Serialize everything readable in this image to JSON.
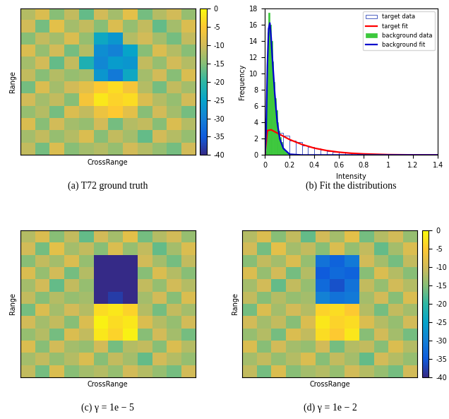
{
  "chart_data": [
    {
      "type": "heatmap",
      "caption": "(a) T72 ground truth",
      "x_label": "CrossRange",
      "y_label": "Range",
      "tick_labels": false,
      "color_range": [
        -40,
        0
      ],
      "color_ticks": [
        0,
        -5,
        -10,
        -15,
        -20,
        -25,
        -30,
        -35,
        -40
      ],
      "cells": [
        [
          -12,
          -9,
          -15,
          -11,
          -17,
          -10,
          -13,
          -8,
          -16,
          -12,
          -10,
          -14
        ],
        [
          -10,
          -16,
          -8,
          -13,
          -11,
          -15,
          -9,
          -14,
          -11,
          -17,
          -13,
          -9
        ],
        [
          -15,
          -11,
          -13,
          -9,
          -14,
          -24,
          -27,
          -12,
          -10,
          -13,
          -16,
          -11
        ],
        [
          -9,
          -14,
          -10,
          -16,
          -12,
          -28,
          -30,
          -25,
          -15,
          -9,
          -12,
          -15
        ],
        [
          -13,
          -10,
          -17,
          -11,
          -22,
          -29,
          -26,
          -27,
          -11,
          -14,
          -10,
          -12
        ],
        [
          -11,
          -15,
          -12,
          -14,
          -13,
          -27,
          -31,
          -24,
          -13,
          -10,
          -15,
          -9
        ],
        [
          -16,
          -9,
          -13,
          -10,
          -8,
          -5,
          -3,
          -6,
          -12,
          -16,
          -11,
          -13
        ],
        [
          -10,
          -13,
          -11,
          -15,
          -6,
          -2,
          -4,
          -3,
          -9,
          -12,
          -14,
          -10
        ],
        [
          -14,
          -12,
          -16,
          -9,
          -11,
          -7,
          -5,
          -8,
          -15,
          -10,
          -13,
          -16
        ],
        [
          -9,
          -15,
          -10,
          -13,
          -14,
          -10,
          -16,
          -12,
          -11,
          -15,
          -9,
          -12
        ],
        [
          -13,
          -11,
          -14,
          -12,
          -9,
          -15,
          -11,
          -13,
          -17,
          -10,
          -12,
          -14
        ],
        [
          -11,
          -16,
          -9,
          -15,
          -13,
          -12,
          -14,
          -10,
          -12,
          -14,
          -16,
          -10
        ]
      ]
    },
    {
      "type": "histogram",
      "caption": "(b) Fit the distributions",
      "x_label": "Intensity",
      "y_label": "Frequency",
      "xlim": [
        0,
        1.4
      ],
      "ylim": [
        0,
        18
      ],
      "xticks": [
        0,
        0.2,
        0.4,
        0.6,
        0.8,
        1,
        1.2,
        1.4
      ],
      "yticks": [
        0,
        2,
        4,
        6,
        8,
        10,
        12,
        14,
        16,
        18
      ],
      "legend": "upper right",
      "series": [
        {
          "name": "target data",
          "type": "histogram",
          "color": "#4a5fc1",
          "bins": [
            0,
            0.05,
            0.1,
            0.15,
            0.2,
            0.25,
            0.3,
            0.35,
            0.4,
            0.45,
            0.5,
            0.55,
            0.6,
            0.65,
            0.7,
            0.75,
            0.8,
            0.85,
            0.9,
            0.95,
            1.0,
            1.05,
            1.1,
            1.15,
            1.2,
            1.25,
            1.3,
            1.35,
            1.4
          ],
          "counts": [
            4.5,
            3.0,
            2.7,
            2.4,
            1.8,
            1.6,
            1.2,
            1.0,
            0.8,
            0.6,
            0.5,
            0.4,
            0.35,
            0.3,
            0.2,
            0.15,
            0.1,
            0.1,
            0.05,
            0.05,
            0.05,
            0,
            0,
            0.03,
            0,
            0,
            0,
            0.02
          ]
        },
        {
          "name": "target fit",
          "type": "line",
          "color": "#ff0000",
          "x": [
            0,
            0.02,
            0.05,
            0.1,
            0.15,
            0.2,
            0.3,
            0.4,
            0.5,
            0.6,
            0.7,
            0.8,
            1.0,
            1.2,
            1.4
          ],
          "values": [
            0,
            3.0,
            3.1,
            2.7,
            2.3,
            1.9,
            1.3,
            0.85,
            0.55,
            0.35,
            0.22,
            0.14,
            0.05,
            0.02,
            0.01
          ]
        },
        {
          "name": "background data",
          "type": "histogram",
          "color": "#3cc83c",
          "bins": [
            0,
            0.01,
            0.02,
            0.03,
            0.04,
            0.05,
            0.06,
            0.07,
            0.08,
            0.09,
            0.1,
            0.11,
            0.12,
            0.13,
            0.14,
            0.15,
            0.16,
            0.17,
            0.18,
            0.19,
            0.2
          ],
          "counts": [
            0.5,
            8,
            15,
            17.5,
            16,
            14,
            11.5,
            9,
            7,
            5.5,
            4,
            3,
            2.2,
            1.6,
            1.1,
            0.8,
            0.5,
            0.35,
            0.2,
            0.1
          ]
        },
        {
          "name": "background fit",
          "type": "line",
          "color": "#0000cc",
          "x": [
            0,
            0.01,
            0.02,
            0.03,
            0.04,
            0.05,
            0.06,
            0.08,
            0.1,
            0.12,
            0.15,
            0.2,
            0.3,
            1.4
          ],
          "values": [
            0,
            3,
            11,
            15.5,
            16.2,
            14.5,
            12,
            7.5,
            4,
            2,
            0.8,
            0.1,
            0,
            0
          ]
        }
      ]
    },
    {
      "type": "heatmap",
      "caption": "(c) γ = 1e − 5",
      "x_label": "CrossRange",
      "y_label": "Range",
      "tick_labels": false,
      "color_range": [
        -40,
        0
      ],
      "cells": [
        [
          -12,
          -9,
          -15,
          -11,
          -17,
          -10,
          -13,
          -8,
          -16,
          -12,
          -10,
          -14
        ],
        [
          -10,
          -16,
          -8,
          -13,
          -11,
          -15,
          -9,
          -14,
          -11,
          -17,
          -13,
          -9
        ],
        [
          -15,
          -11,
          -13,
          -9,
          -14,
          -40,
          -40,
          -40,
          -10,
          -13,
          -16,
          -11
        ],
        [
          -9,
          -14,
          -10,
          -16,
          -12,
          -40,
          -40,
          -40,
          -15,
          -9,
          -12,
          -15
        ],
        [
          -13,
          -10,
          -17,
          -11,
          -14,
          -40,
          -40,
          -40,
          -11,
          -14,
          -10,
          -12
        ],
        [
          -11,
          -15,
          -12,
          -14,
          -13,
          -40,
          -38,
          -40,
          -13,
          -10,
          -15,
          -9
        ],
        [
          -16,
          -9,
          -13,
          -10,
          -12,
          -3,
          -2,
          -4,
          -12,
          -16,
          -11,
          -13
        ],
        [
          -10,
          -13,
          -11,
          -15,
          -9,
          -1,
          -3,
          -2,
          -9,
          -12,
          -14,
          -10
        ],
        [
          -14,
          -12,
          -16,
          -9,
          -11,
          -2,
          -4,
          -1,
          -15,
          -10,
          -13,
          -16
        ],
        [
          -9,
          -15,
          -10,
          -13,
          -14,
          -10,
          -16,
          -12,
          -11,
          -15,
          -9,
          -12
        ],
        [
          -13,
          -11,
          -14,
          -12,
          -9,
          -15,
          -11,
          -13,
          -17,
          -10,
          -12,
          -14
        ],
        [
          -11,
          -16,
          -9,
          -15,
          -13,
          -12,
          -14,
          -10,
          -12,
          -14,
          -16,
          -10
        ]
      ]
    },
    {
      "type": "heatmap",
      "caption": "(d) γ = 1e − 2",
      "x_label": "CrossRange",
      "y_label": "Range",
      "tick_labels": false,
      "color_range": [
        -40,
        0
      ],
      "color_ticks": [
        0,
        -5,
        -10,
        -15,
        -20,
        -25,
        -30,
        -35,
        -40
      ],
      "cells": [
        [
          -12,
          -9,
          -15,
          -11,
          -17,
          -10,
          -13,
          -8,
          -16,
          -12,
          -10,
          -14
        ],
        [
          -10,
          -16,
          -8,
          -13,
          -11,
          -15,
          -9,
          -14,
          -11,
          -17,
          -13,
          -9
        ],
        [
          -15,
          -11,
          -13,
          -9,
          -14,
          -32,
          -34,
          -31,
          -10,
          -13,
          -16,
          -11
        ],
        [
          -9,
          -14,
          -10,
          -16,
          -12,
          -35,
          -33,
          -34,
          -15,
          -9,
          -12,
          -15
        ],
        [
          -13,
          -10,
          -17,
          -11,
          -14,
          -33,
          -36,
          -32,
          -11,
          -14,
          -10,
          -12
        ],
        [
          -11,
          -15,
          -12,
          -14,
          -13,
          -30,
          -32,
          -31,
          -13,
          -10,
          -15,
          -9
        ],
        [
          -16,
          -9,
          -13,
          -10,
          -12,
          -4,
          -3,
          -5,
          -12,
          -16,
          -11,
          -13
        ],
        [
          -10,
          -13,
          -11,
          -15,
          -9,
          -2,
          -4,
          -3,
          -9,
          -12,
          -14,
          -10
        ],
        [
          -14,
          -12,
          -16,
          -9,
          -11,
          -3,
          -5,
          -2,
          -15,
          -10,
          -13,
          -16
        ],
        [
          -9,
          -15,
          -10,
          -13,
          -14,
          -10,
          -16,
          -12,
          -11,
          -15,
          -9,
          -12
        ],
        [
          -13,
          -11,
          -14,
          -12,
          -9,
          -15,
          -11,
          -13,
          -17,
          -10,
          -12,
          -14
        ],
        [
          -11,
          -16,
          -9,
          -15,
          -13,
          -12,
          -14,
          -10,
          -12,
          -14,
          -16,
          -10
        ]
      ]
    }
  ]
}
